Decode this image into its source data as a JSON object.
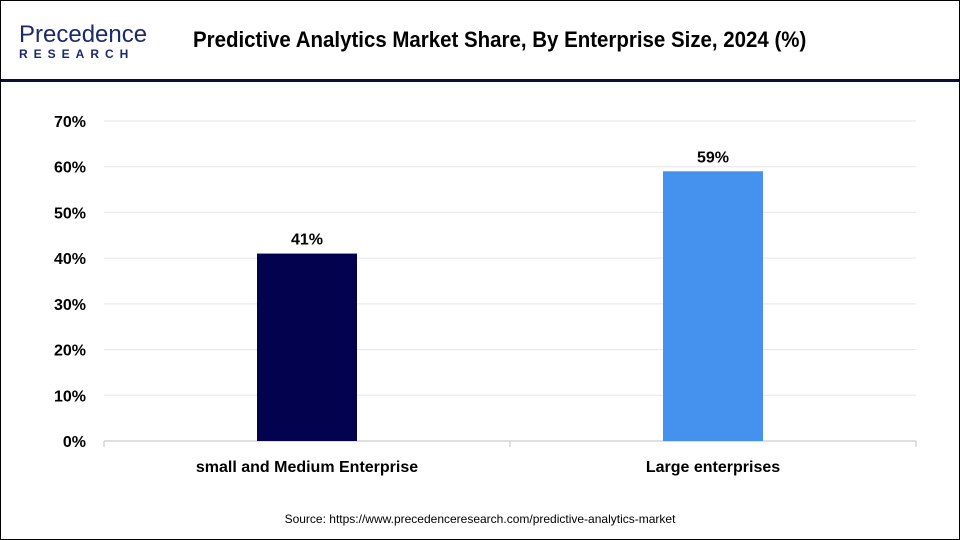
{
  "logo": {
    "line1": "Precedence",
    "line2": "RESEARCH"
  },
  "title": "Predictive Analytics Market Share, By Enterprise Size, 2024 (%)",
  "source": "Source: https://www.precedenceresearch.com/predictive-analytics-market",
  "chart_data": {
    "type": "bar",
    "title": "Predictive Analytics Market Share, By Enterprise Size, 2024 (%)",
    "categories": [
      "small and Medium Enterprise",
      "Large enterprises"
    ],
    "values": [
      41,
      59
    ],
    "data_labels": [
      "41%",
      "59%"
    ],
    "colors": [
      "#02024f",
      "#4592ee"
    ],
    "ylim": [
      0,
      70
    ],
    "yticks": [
      "0%",
      "10%",
      "20%",
      "30%",
      "40%",
      "50%",
      "60%",
      "70%"
    ],
    "grid": true,
    "xlabel": "",
    "ylabel": ""
  }
}
